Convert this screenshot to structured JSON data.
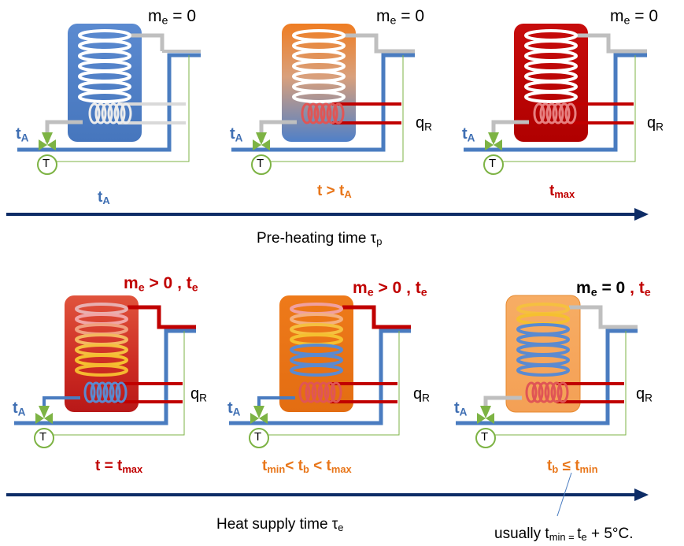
{
  "colors": {
    "blue": "#4a7cc0",
    "tank_blue": "#4f80c8",
    "orange": "#e8761a",
    "red": "#c00000",
    "dark_navy": "#0d2c66",
    "green": "#7db344",
    "gray_pipe": "#bfbfbf"
  },
  "common": {
    "m": "m",
    "e": "e",
    "t": "t",
    "A": "A",
    "R": "R",
    "q": "q",
    "T": "T"
  },
  "top": {
    "tank1_flow": "m_e = 0",
    "tank2_flow": "m_e = 0",
    "tank3_flow": "m_e = 0",
    "stage1": {
      "base": "t",
      "sub": "A"
    },
    "stage2": {
      "pre": "t > t",
      "sub": "A"
    },
    "stage3": {
      "base": "t",
      "sub": "max"
    },
    "axis_label": "Pre-heating time τ",
    "axis_sub": "p"
  },
  "bottom": {
    "tank4_flow": {
      "m": "m",
      "e": "e",
      "rest": " > 0 , t",
      "e2": "e"
    },
    "tank5_flow": {
      "m": "m",
      "e": "e",
      "rest": " > 0 , t",
      "e2": "e"
    },
    "tank6_flow": {
      "m": "m",
      "e": "e",
      "rest": " = 0 ",
      "comma": ", t",
      "e2": "e"
    },
    "stage4": {
      "pre": "t = t",
      "sub": "max"
    },
    "stage5": {
      "t1": "t",
      "s1": "min",
      "lt1": "< t",
      "s2": "b",
      "lt2": " < t",
      "s3": "max"
    },
    "stage6": {
      "t1": "t",
      "s1": "b",
      "le": " ≤ t",
      "s2": "min"
    },
    "axis_label": "Heat supply time τ",
    "axis_sub": "e",
    "note": {
      "pre": "usually t",
      "s1": "min = ",
      "mid": " t",
      "s2": "e",
      "post": " + 5°C."
    }
  }
}
